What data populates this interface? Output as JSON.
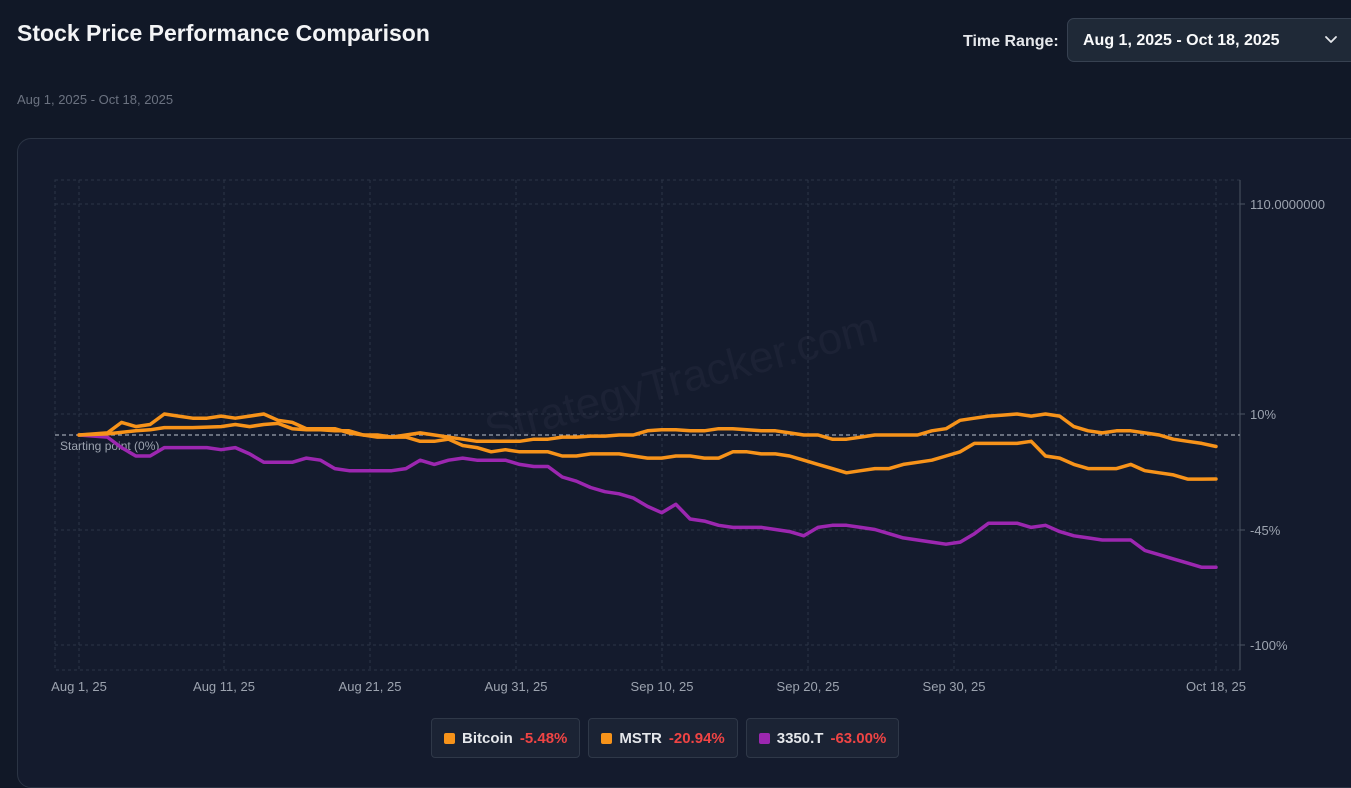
{
  "header": {
    "title": "Stock Price Performance Comparison",
    "subtitle": "Aug 1, 2025 - Oct 18, 2025",
    "time_range_label": "Time Range:",
    "time_range_value": "Aug 1, 2025 - Oct 18, 2025"
  },
  "watermark": "StrategyTracker.com",
  "chart_data": {
    "type": "line",
    "xlabel": "",
    "ylabel": "",
    "x_ticks": [
      "Aug 1, 25",
      "Aug 11, 25",
      "Aug 21, 25",
      "Aug 31, 25",
      "Sep 10, 25",
      "Sep 20, 25",
      "Sep 30, 25",
      "Oct 18, 25"
    ],
    "y_ticks": [
      "110.0000000",
      "10%",
      "-45%",
      "-100%"
    ],
    "baseline_label": "Starting point (0%)",
    "grid": true,
    "legend_position": "bottom",
    "colors": {
      "Bitcoin": "#f7931a",
      "MSTR": "#f7931a",
      "3350.T": "#9c27b0"
    },
    "series": [
      {
        "name": "Bitcoin",
        "change": "-5.48%",
        "points": [
          [
            0,
            0
          ],
          [
            2,
            0.5
          ],
          [
            4,
            2
          ],
          [
            5,
            2.5
          ],
          [
            6,
            3.5
          ],
          [
            8,
            3.5
          ],
          [
            10,
            4
          ],
          [
            11,
            5
          ],
          [
            12,
            4
          ],
          [
            13,
            5
          ],
          [
            14,
            5.5
          ],
          [
            15,
            3
          ],
          [
            16,
            2.5
          ],
          [
            17,
            2.5
          ],
          [
            18,
            2
          ],
          [
            19,
            2
          ],
          [
            20,
            0
          ],
          [
            21,
            0
          ],
          [
            22,
            -1
          ],
          [
            23,
            0
          ],
          [
            24,
            1
          ],
          [
            25,
            0
          ],
          [
            26,
            -1
          ],
          [
            27,
            -2
          ],
          [
            28,
            -3
          ],
          [
            29,
            -3
          ],
          [
            30,
            -3
          ],
          [
            31,
            -3
          ],
          [
            32,
            -2
          ],
          [
            33,
            -2
          ],
          [
            34,
            -1
          ],
          [
            35,
            -1
          ],
          [
            36,
            -0.5
          ],
          [
            37,
            -0.5
          ],
          [
            38,
            0
          ],
          [
            39,
            0
          ],
          [
            40,
            2
          ],
          [
            41,
            2.5
          ],
          [
            42,
            2.5
          ],
          [
            43,
            2
          ],
          [
            44,
            2
          ],
          [
            45,
            3
          ],
          [
            46,
            3
          ],
          [
            47,
            2.5
          ],
          [
            48,
            2
          ],
          [
            49,
            2
          ],
          [
            50,
            1
          ],
          [
            51,
            0
          ],
          [
            52,
            0
          ],
          [
            53,
            -2
          ],
          [
            54,
            -2
          ],
          [
            55,
            -1
          ],
          [
            56,
            0
          ],
          [
            57,
            0
          ],
          [
            58,
            0
          ],
          [
            59,
            0
          ],
          [
            60,
            2
          ],
          [
            61,
            3
          ],
          [
            62,
            7
          ],
          [
            63,
            8
          ],
          [
            64,
            9
          ],
          [
            65,
            9.5
          ],
          [
            66,
            10
          ],
          [
            67,
            9
          ],
          [
            68,
            10
          ],
          [
            69,
            9
          ],
          [
            70,
            4
          ],
          [
            71,
            2
          ],
          [
            72,
            1
          ],
          [
            73,
            2
          ],
          [
            74,
            2
          ],
          [
            75,
            1
          ],
          [
            76,
            0
          ],
          [
            77,
            -2
          ],
          [
            78,
            -3
          ],
          [
            79,
            -4
          ],
          [
            80,
            -5.48
          ]
        ]
      },
      {
        "name": "MSTR",
        "change": "-20.94%",
        "points": [
          [
            0,
            0
          ],
          [
            2,
            1
          ],
          [
            3,
            6
          ],
          [
            4,
            4
          ],
          [
            5,
            5
          ],
          [
            6,
            10
          ],
          [
            7,
            9
          ],
          [
            8,
            8
          ],
          [
            9,
            8
          ],
          [
            10,
            9
          ],
          [
            11,
            8
          ],
          [
            12,
            9
          ],
          [
            13,
            10
          ],
          [
            14,
            7
          ],
          [
            15,
            6
          ],
          [
            16,
            3
          ],
          [
            17,
            3
          ],
          [
            18,
            3
          ],
          [
            19,
            1
          ],
          [
            20,
            0
          ],
          [
            21,
            -1
          ],
          [
            22,
            -1
          ],
          [
            23,
            -1
          ],
          [
            24,
            -3
          ],
          [
            25,
            -3
          ],
          [
            26,
            -2
          ],
          [
            27,
            -5
          ],
          [
            28,
            -6
          ],
          [
            29,
            -8
          ],
          [
            30,
            -7
          ],
          [
            31,
            -8
          ],
          [
            32,
            -8
          ],
          [
            33,
            -8
          ],
          [
            34,
            -10
          ],
          [
            35,
            -10
          ],
          [
            36,
            -9
          ],
          [
            37,
            -9
          ],
          [
            38,
            -9
          ],
          [
            39,
            -10
          ],
          [
            40,
            -11
          ],
          [
            41,
            -11
          ],
          [
            42,
            -10
          ],
          [
            43,
            -10
          ],
          [
            44,
            -11
          ],
          [
            45,
            -11
          ],
          [
            46,
            -8
          ],
          [
            47,
            -8
          ],
          [
            48,
            -9
          ],
          [
            49,
            -9
          ],
          [
            50,
            -10
          ],
          [
            51,
            -12
          ],
          [
            52,
            -14
          ],
          [
            53,
            -16
          ],
          [
            54,
            -18
          ],
          [
            55,
            -17
          ],
          [
            56,
            -16
          ],
          [
            57,
            -16
          ],
          [
            58,
            -14
          ],
          [
            59,
            -13
          ],
          [
            60,
            -12
          ],
          [
            61,
            -10
          ],
          [
            62,
            -8
          ],
          [
            63,
            -4
          ],
          [
            64,
            -4
          ],
          [
            65,
            -4
          ],
          [
            66,
            -4
          ],
          [
            67,
            -3
          ],
          [
            68,
            -10
          ],
          [
            69,
            -11
          ],
          [
            70,
            -14
          ],
          [
            71,
            -16
          ],
          [
            72,
            -16
          ],
          [
            73,
            -16
          ],
          [
            74,
            -14
          ],
          [
            75,
            -17
          ],
          [
            76,
            -18
          ],
          [
            77,
            -19
          ],
          [
            78,
            -21
          ],
          [
            79,
            -21
          ],
          [
            80,
            -20.94
          ]
        ]
      },
      {
        "name": "3350.T",
        "change": "-63.00%",
        "points": [
          [
            0,
            0
          ],
          [
            2,
            -1
          ],
          [
            3,
            -6
          ],
          [
            4,
            -10
          ],
          [
            5,
            -10
          ],
          [
            6,
            -6
          ],
          [
            7,
            -6
          ],
          [
            8,
            -6
          ],
          [
            9,
            -6
          ],
          [
            10,
            -7
          ],
          [
            11,
            -6
          ],
          [
            12,
            -9
          ],
          [
            13,
            -13
          ],
          [
            14,
            -13
          ],
          [
            15,
            -13
          ],
          [
            16,
            -11
          ],
          [
            17,
            -12
          ],
          [
            18,
            -16
          ],
          [
            19,
            -17
          ],
          [
            20,
            -17
          ],
          [
            21,
            -17
          ],
          [
            22,
            -17
          ],
          [
            23,
            -16
          ],
          [
            24,
            -12
          ],
          [
            25,
            -14
          ],
          [
            26,
            -12
          ],
          [
            27,
            -11
          ],
          [
            28,
            -12
          ],
          [
            29,
            -12
          ],
          [
            30,
            -12
          ],
          [
            31,
            -14
          ],
          [
            32,
            -15
          ],
          [
            33,
            -15
          ],
          [
            34,
            -20
          ],
          [
            35,
            -22
          ],
          [
            36,
            -25
          ],
          [
            37,
            -27
          ],
          [
            38,
            -28
          ],
          [
            39,
            -30
          ],
          [
            40,
            -34
          ],
          [
            41,
            -37
          ],
          [
            42,
            -33
          ],
          [
            43,
            -40
          ],
          [
            44,
            -41
          ],
          [
            45,
            -43
          ],
          [
            46,
            -44
          ],
          [
            47,
            -44
          ],
          [
            48,
            -44
          ],
          [
            49,
            -45
          ],
          [
            50,
            -46
          ],
          [
            51,
            -48
          ],
          [
            52,
            -44
          ],
          [
            53,
            -43
          ],
          [
            54,
            -43
          ],
          [
            55,
            -44
          ],
          [
            56,
            -45
          ],
          [
            57,
            -47
          ],
          [
            58,
            -49
          ],
          [
            59,
            -50
          ],
          [
            60,
            -51
          ],
          [
            61,
            -52
          ],
          [
            62,
            -51
          ],
          [
            63,
            -47
          ],
          [
            64,
            -42
          ],
          [
            65,
            -42
          ],
          [
            66,
            -42
          ],
          [
            67,
            -44
          ],
          [
            68,
            -43
          ],
          [
            69,
            -46
          ],
          [
            70,
            -48
          ],
          [
            71,
            -49
          ],
          [
            72,
            -50
          ],
          [
            73,
            -50
          ],
          [
            74,
            -50
          ],
          [
            75,
            -55
          ],
          [
            76,
            -57
          ],
          [
            77,
            -59
          ],
          [
            78,
            -61
          ],
          [
            79,
            -63
          ],
          [
            80,
            -63.0
          ]
        ]
      }
    ]
  }
}
